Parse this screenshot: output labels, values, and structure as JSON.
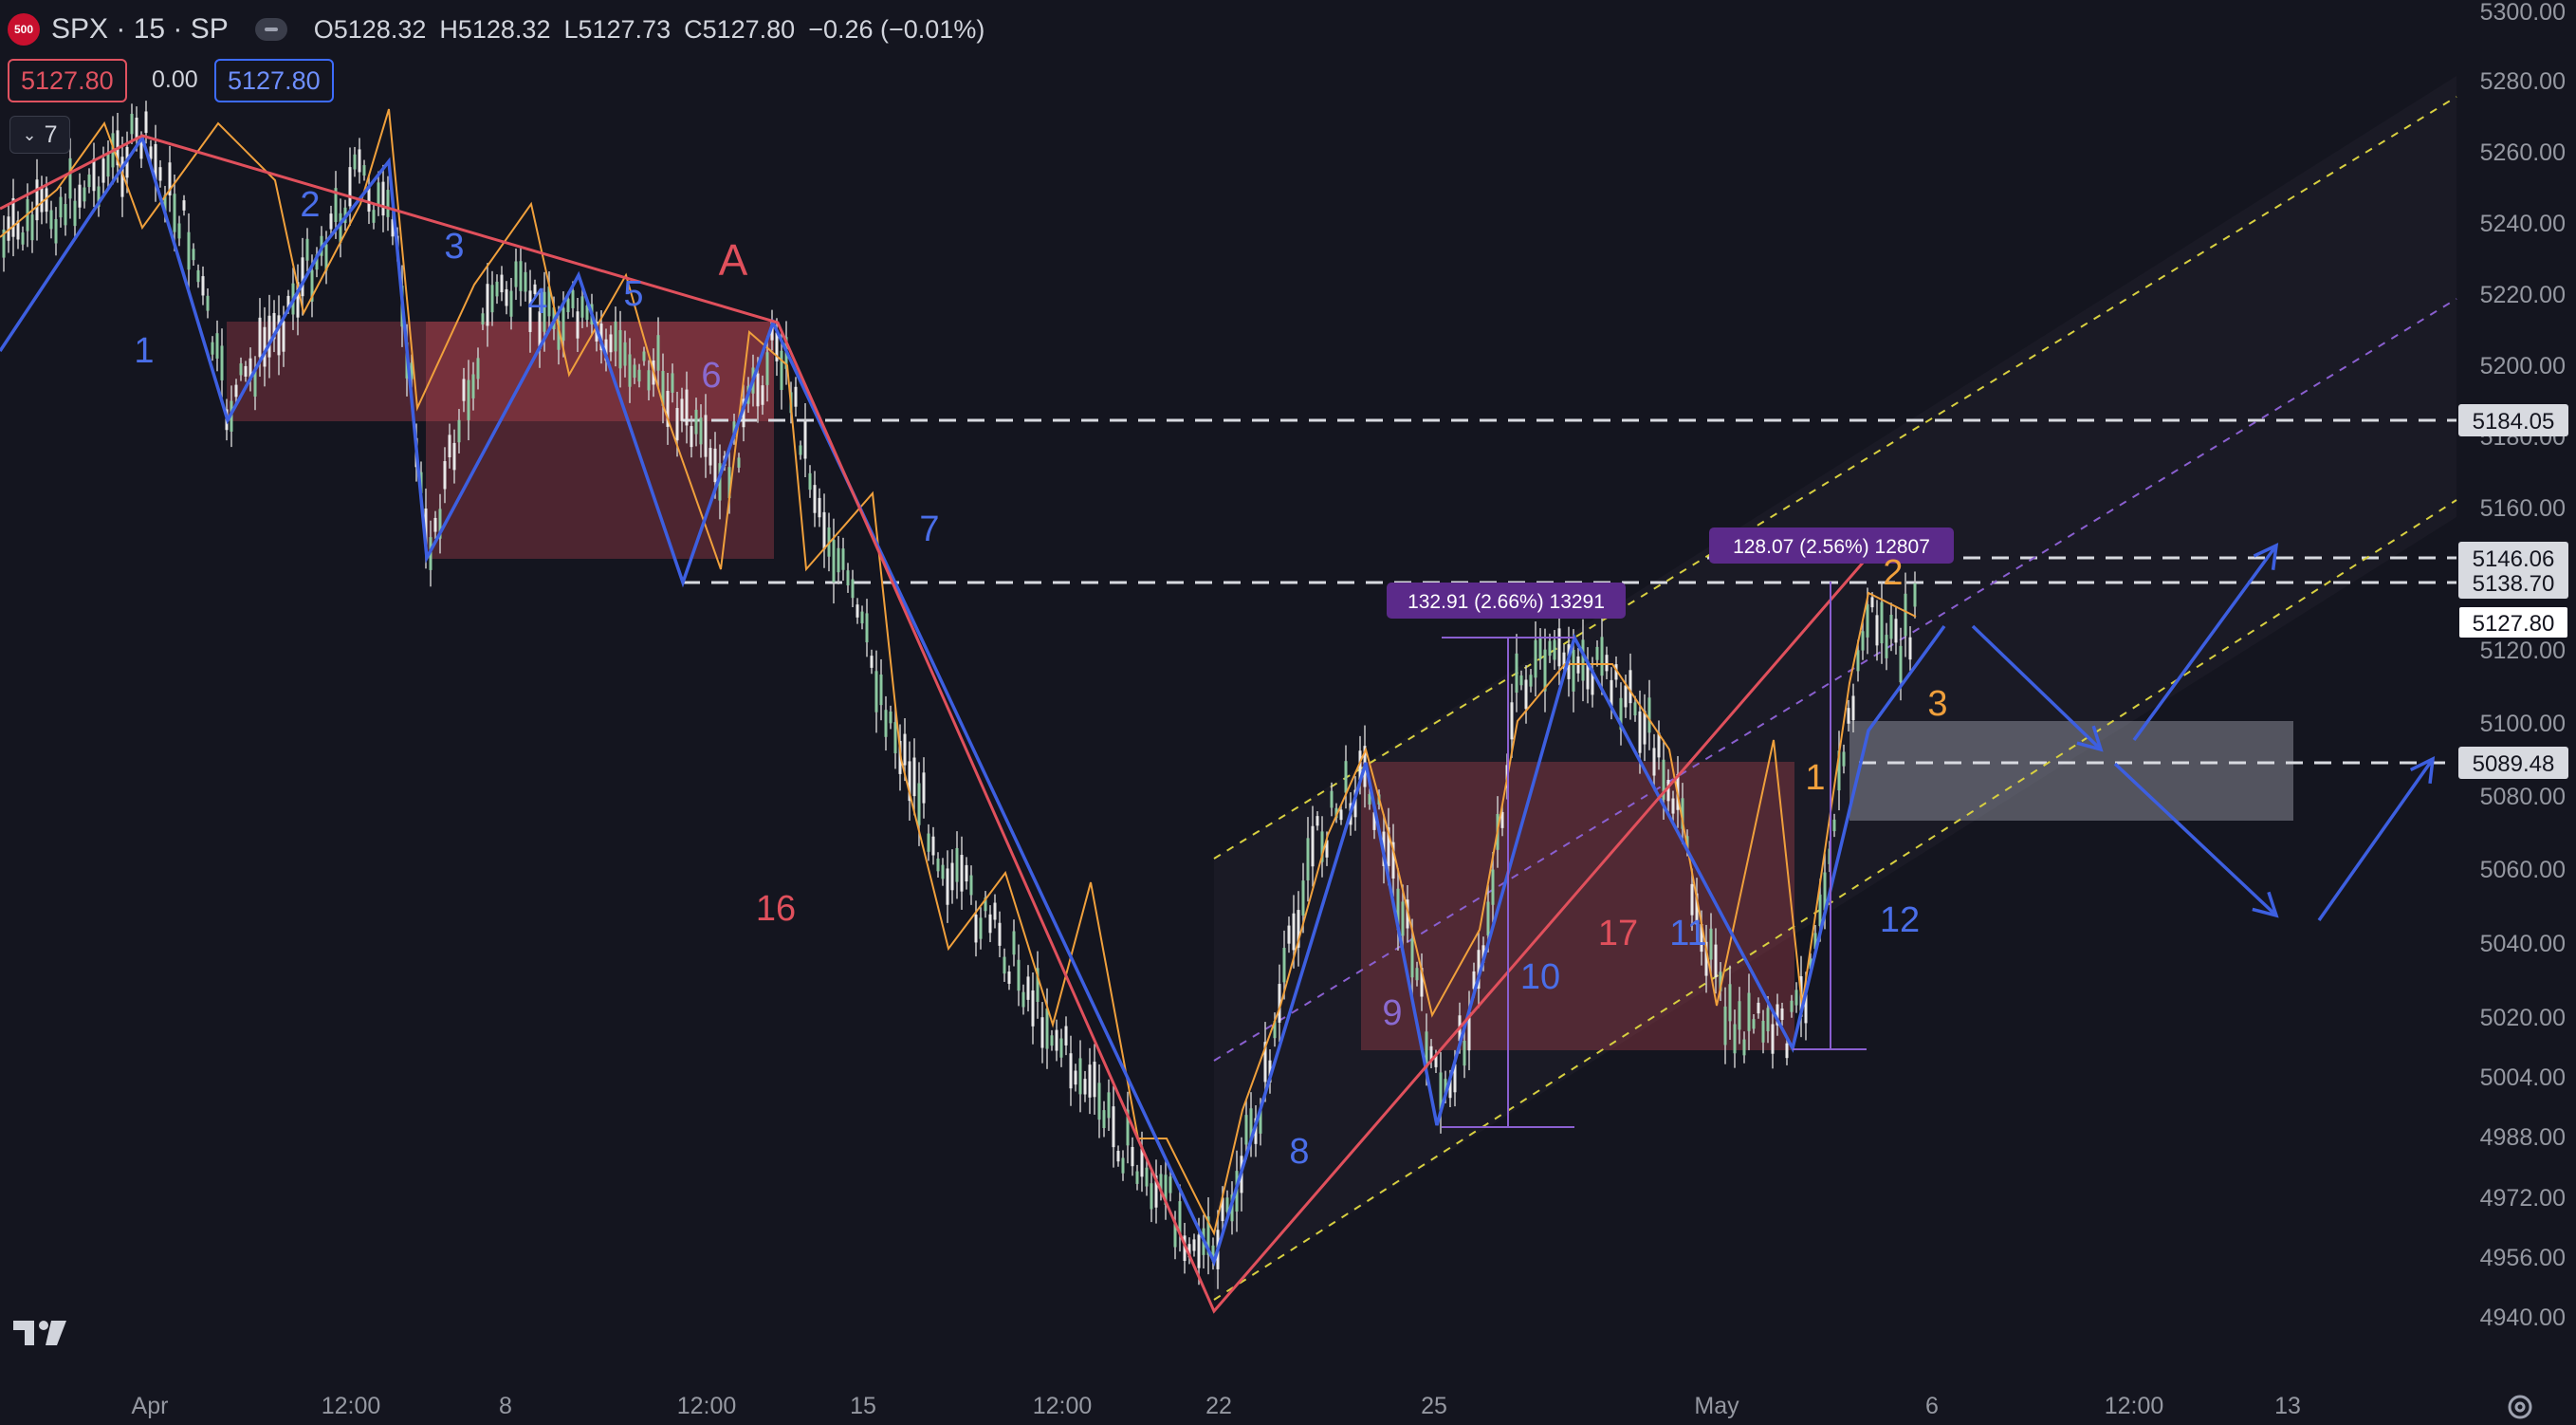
{
  "header": {
    "badge": "500",
    "symbol": "SPX · 15 · SP",
    "open": "O5128.32",
    "high": "H5128.32",
    "low": "L5127.73",
    "close": "C5127.80",
    "change": "−0.26 (−0.01%)"
  },
  "price_boxes": {
    "sell": "5127.80",
    "spread": "0.00",
    "buy": "5127.80"
  },
  "indicator_toggle": {
    "count": "7",
    "icon": "chevron-down-icon"
  },
  "price_axis": {
    "ticks": [
      "5300.00",
      "5280.00",
      "5260.00",
      "5240.00",
      "5220.00",
      "5200.00",
      "5180.00",
      "5160.00",
      "5140.00",
      "5120.00",
      "5100.00",
      "5080.00",
      "5060.00",
      "5040.00",
      "5020.00",
      "5004.00",
      "4988.00",
      "4972.00",
      "4956.00",
      "4940.00"
    ],
    "level_labels": [
      {
        "text": "5184.05",
        "style": "white"
      },
      {
        "text": "5146.06",
        "style": "white"
      },
      {
        "text": "5138.70",
        "style": "white"
      },
      {
        "text": "5127.80",
        "style": "dark"
      },
      {
        "text": "5089.48",
        "style": "white"
      }
    ]
  },
  "time_axis": [
    "Apr",
    "12:00",
    "8",
    "12:00",
    "15",
    "12:00",
    "22",
    "25",
    "May",
    "6",
    "12:00",
    "13"
  ],
  "wave_labels": [
    {
      "text": "1",
      "color": "blue"
    },
    {
      "text": "2",
      "color": "blue"
    },
    {
      "text": "3",
      "color": "blue"
    },
    {
      "text": "4",
      "color": "blue"
    },
    {
      "text": "5",
      "color": "blue"
    },
    {
      "text": "6",
      "color": "purple"
    },
    {
      "text": "7",
      "color": "blue"
    },
    {
      "text": "8",
      "color": "blue"
    },
    {
      "text": "9",
      "color": "purple"
    },
    {
      "text": "10",
      "color": "blue"
    },
    {
      "text": "11",
      "color": "blue"
    },
    {
      "text": "12",
      "color": "blue"
    },
    {
      "text": "A",
      "color": "red"
    },
    {
      "text": "16",
      "color": "red"
    },
    {
      "text": "17",
      "color": "red"
    },
    {
      "text": "1",
      "color": "orange"
    },
    {
      "text": "2",
      "color": "orange"
    },
    {
      "text": "3",
      "color": "orange"
    }
  ],
  "measure_labels": [
    "132.91 (2.66%) 13291",
    "128.07 (2.56%) 12807"
  ],
  "colors": {
    "background": "#14151f",
    "blue": "#3d5fe0",
    "red": "#e0505c",
    "orange": "#f0a03c",
    "purple": "#8a5fd0",
    "yellow": "#d8d040",
    "measure": "#5b2a8a"
  },
  "branding": {
    "logo": "tradingview-logo-icon",
    "settings": "gear-icon"
  }
}
